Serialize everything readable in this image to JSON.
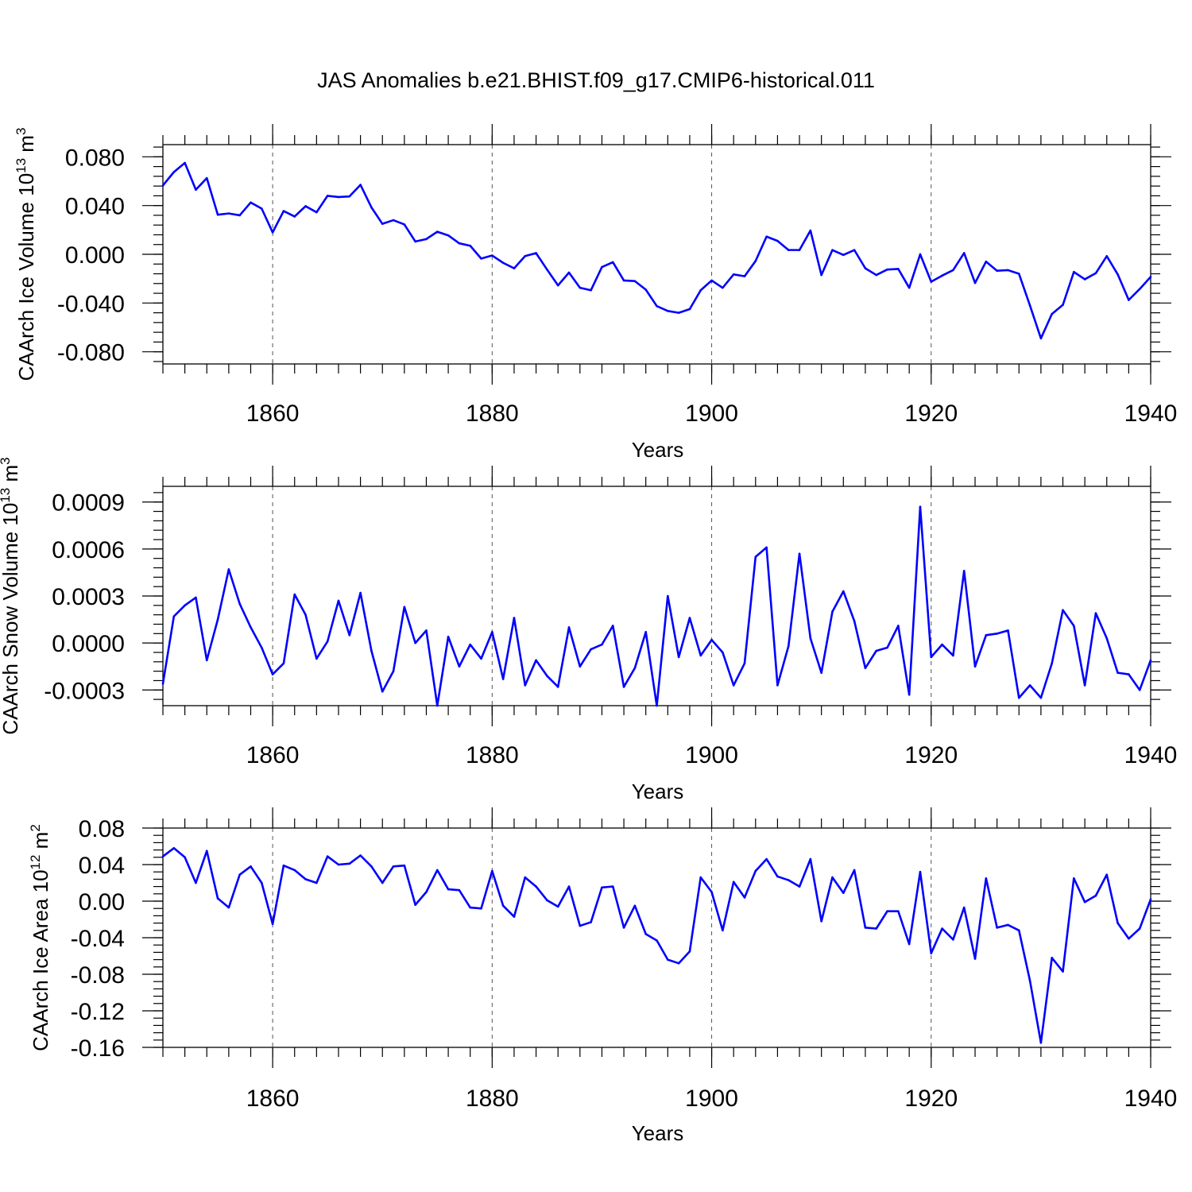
{
  "title": "JAS Anomalies b.e21.BHIST.f09_g17.CMIP6-historical.011",
  "colors": {
    "line": "#0000ff",
    "axis": "#000000"
  },
  "chart_data": [
    {
      "type": "line",
      "panel": "ice-volume",
      "ylabel": "CAArch Ice Volume 10",
      "ylabel_exp": "13",
      "ylabel_unit": " m",
      "ylabel_unit_exp": "3",
      "xlabel": "Years",
      "xlim": [
        1850,
        1940
      ],
      "ylim": [
        -0.09,
        0.09
      ],
      "major_yticks": [
        -0.08,
        -0.04,
        0.0,
        0.04,
        0.08
      ],
      "minor_ystep": 0.008,
      "yticklabels": [
        "-0.080",
        "-0.040",
        "0.000",
        "0.040",
        "0.080"
      ],
      "xticks": [
        1860,
        1880,
        1900,
        1920,
        1940
      ],
      "xticklabels": [
        "1860",
        "1880",
        "1900",
        "1920",
        "1940"
      ],
      "x_start": 1850,
      "values": [
        0.0565,
        0.0675,
        0.075,
        0.053,
        0.0625,
        0.0325,
        0.0335,
        0.032,
        0.0425,
        0.0375,
        0.018,
        0.0355,
        0.031,
        0.0395,
        0.0345,
        0.048,
        0.047,
        0.0475,
        0.057,
        0.0385,
        0.025,
        0.028,
        0.0245,
        0.0105,
        0.0125,
        0.0185,
        0.0155,
        0.009,
        0.007,
        -0.0035,
        -0.001,
        -0.007,
        -0.0115,
        -0.0015,
        0.001,
        -0.0125,
        -0.0255,
        -0.015,
        -0.0275,
        -0.0295,
        -0.0105,
        -0.0065,
        -0.0215,
        -0.022,
        -0.029,
        -0.0425,
        -0.0465,
        -0.048,
        -0.045,
        -0.0295,
        -0.0215,
        -0.0275,
        -0.0165,
        -0.018,
        -0.0055,
        0.0145,
        0.011,
        0.0035,
        0.0035,
        0.0195,
        -0.017,
        0.0035,
        -0.0005,
        0.0035,
        -0.0115,
        -0.017,
        -0.0125,
        -0.012,
        -0.0275,
        0.0,
        -0.0225,
        -0.0175,
        -0.013,
        0.001,
        -0.0235,
        -0.006,
        -0.0135,
        -0.013,
        -0.016,
        -0.042,
        -0.069,
        -0.049,
        -0.0415,
        -0.0145,
        -0.0205,
        -0.0155,
        -0.0015,
        -0.0165,
        -0.0375,
        -0.0285,
        -0.0185
      ]
    },
    {
      "type": "line",
      "panel": "snow-volume",
      "ylabel": "CAArch Snow Volume 10",
      "ylabel_exp": "13",
      "ylabel_unit": " m",
      "ylabel_unit_exp": "3",
      "xlabel": "Years",
      "xlim": [
        1850,
        1940
      ],
      "ylim": [
        -0.0004,
        0.001
      ],
      "major_yticks": [
        -0.0003,
        0.0,
        0.0003,
        0.0006,
        0.0009
      ],
      "minor_ystep": 6e-05,
      "yticklabels": [
        "-0.0003",
        "0.0000",
        "0.0003",
        "0.0006",
        "0.0009"
      ],
      "xticks": [
        1860,
        1880,
        1900,
        1920,
        1940
      ],
      "xticklabels": [
        "1860",
        "1880",
        "1900",
        "1920",
        "1940"
      ],
      "x_start": 1850,
      "values": [
        -0.00026,
        0.00017,
        0.00024,
        0.00029,
        -0.00011,
        0.00015,
        0.00047,
        0.00025,
        0.0001,
        -3e-05,
        -0.0002,
        -0.00013,
        0.00031,
        0.00018,
        -0.0001,
        1e-05,
        0.00027,
        5e-05,
        0.00032,
        -5e-05,
        -0.00031,
        -0.00018,
        0.00023,
        0.0,
        8e-05,
        -0.0004,
        4e-05,
        -0.00015,
        -1e-05,
        -0.0001,
        7e-05,
        -0.00023,
        0.00016,
        -0.00027,
        -0.00011,
        -0.00021,
        -0.00028,
        0.0001,
        -0.00015,
        -4e-05,
        -1e-05,
        0.00011,
        -0.00028,
        -0.00016,
        7e-05,
        -0.0004,
        0.0003,
        -9e-05,
        0.00016,
        -8e-05,
        2e-05,
        -6e-05,
        -0.00027,
        -0.00013,
        0.00055,
        0.00061,
        -0.00027,
        -2e-05,
        0.00057,
        3e-05,
        -0.00019,
        0.0002,
        0.00033,
        0.00014,
        -0.00016,
        -5e-05,
        -3e-05,
        0.00011,
        -0.00033,
        0.00087,
        -9e-05,
        -1e-05,
        -8e-05,
        0.00046,
        -0.00015,
        5e-05,
        6e-05,
        8e-05,
        -0.00035,
        -0.00027,
        -0.00035,
        -0.00013,
        0.00021,
        0.00011,
        -0.00027,
        0.00019,
        3e-05,
        -0.00019,
        -0.0002,
        -0.0003,
        -0.00011
      ]
    },
    {
      "type": "line",
      "panel": "ice-area",
      "ylabel": "CAArch Ice Area 10",
      "ylabel_exp": "12",
      "ylabel_unit": " m",
      "ylabel_unit_exp": "2",
      "xlabel": "Years",
      "xlim": [
        1850,
        1940
      ],
      "ylim": [
        -0.16,
        0.08
      ],
      "major_yticks": [
        -0.16,
        -0.12,
        -0.08,
        -0.04,
        0.0,
        0.04,
        0.08
      ],
      "minor_ystep": 0.008,
      "yticklabels": [
        "-0.16",
        "-0.12",
        "-0.08",
        "-0.04",
        "0.00",
        "0.04",
        "0.08"
      ],
      "xticks": [
        1860,
        1880,
        1900,
        1920,
        1940
      ],
      "xticklabels": [
        "1860",
        "1880",
        "1900",
        "1920",
        "1940"
      ],
      "x_start": 1850,
      "values": [
        0.049,
        0.058,
        0.048,
        0.02,
        0.055,
        0.003,
        -0.007,
        0.029,
        0.038,
        0.02,
        -0.025,
        0.039,
        0.034,
        0.024,
        0.02,
        0.049,
        0.04,
        0.041,
        0.05,
        0.038,
        0.02,
        0.038,
        0.039,
        -0.004,
        0.01,
        0.034,
        0.013,
        0.012,
        -0.007,
        -0.008,
        0.033,
        -0.005,
        -0.017,
        0.026,
        0.016,
        0.001,
        -0.006,
        0.016,
        -0.027,
        -0.023,
        0.015,
        0.016,
        -0.029,
        -0.005,
        -0.036,
        -0.043,
        -0.064,
        -0.068,
        -0.055,
        0.026,
        0.01,
        -0.032,
        0.021,
        0.004,
        0.033,
        0.046,
        0.027,
        0.023,
        0.016,
        0.046,
        -0.022,
        0.026,
        0.009,
        0.034,
        -0.029,
        -0.03,
        -0.011,
        -0.011,
        -0.047,
        0.032,
        -0.057,
        -0.03,
        -0.042,
        -0.007,
        -0.063,
        0.025,
        -0.029,
        -0.026,
        -0.032,
        -0.087,
        -0.155,
        -0.062,
        -0.077,
        0.025,
        -0.001,
        0.006,
        0.029,
        -0.024,
        -0.041,
        -0.03,
        0.002
      ]
    }
  ]
}
